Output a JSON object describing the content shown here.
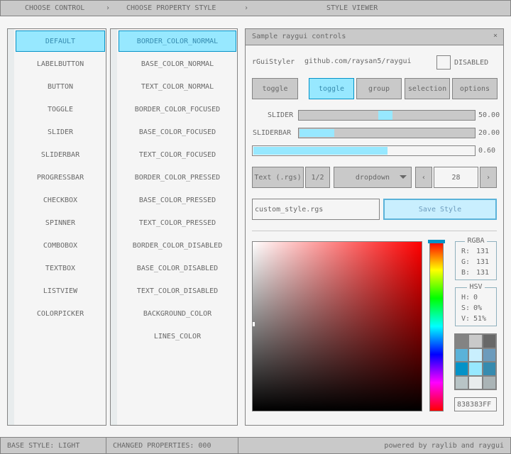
{
  "topbar": {
    "step1": "CHOOSE CONTROL",
    "sep": "›",
    "step2": "CHOOSE PROPERTY STYLE",
    "step3": "STYLE VIEWER"
  },
  "controls": [
    "DEFAULT",
    "LABELBUTTON",
    "BUTTON",
    "TOGGLE",
    "SLIDER",
    "SLIDERBAR",
    "PROGRESSBAR",
    "CHECKBOX",
    "SPINNER",
    "COMBOBOX",
    "TEXTBOX",
    "LISTVIEW",
    "COLORPICKER"
  ],
  "properties": [
    "BORDER_COLOR_NORMAL",
    "BASE_COLOR_NORMAL",
    "TEXT_COLOR_NORMAL",
    "BORDER_COLOR_FOCUSED",
    "BASE_COLOR_FOCUSED",
    "TEXT_COLOR_FOCUSED",
    "BORDER_COLOR_PRESSED",
    "BASE_COLOR_PRESSED",
    "TEXT_COLOR_PRESSED",
    "BORDER_COLOR_DISABLED",
    "BASE_COLOR_DISABLED",
    "TEXT_COLOR_DISABLED",
    "BACKGROUND_COLOR",
    "LINES_COLOR"
  ],
  "window": {
    "title": "Sample raygui controls",
    "close": "×",
    "label": "rGuiStyler",
    "link": "github.com/raysan5/raygui",
    "disabled_label": "DISABLED",
    "disabled_checked": false,
    "toggle": "toggle",
    "group": [
      "toggle",
      "group",
      "selection",
      "options"
    ],
    "slider": {
      "label": "SLIDER",
      "value": "50.00",
      "fraction": 0.5
    },
    "sliderbar": {
      "label": "SLIDERBAR",
      "value": "20.00",
      "fraction": 0.2
    },
    "progress": {
      "value": "0.60",
      "fraction": 0.6
    },
    "text_button": "Text (.rgs)",
    "pager": "1/2",
    "dropdown": "dropdown",
    "spinner": {
      "left": "‹",
      "value": "28",
      "right": "›"
    },
    "filename": "custom_style.rgs",
    "save": "Save Style",
    "rgba": {
      "title": "RGBA",
      "r_label": "R:",
      "r": "131",
      "g_label": "G:",
      "g": "131",
      "b_label": "B:",
      "b": "131"
    },
    "hsv": {
      "title": "HSV",
      "h_label": "H:",
      "h": "0",
      "s_label": "S:",
      "s": "0%",
      "v_label": "V:",
      "v": "51%"
    },
    "palette": [
      "#838383",
      "#c9c9c9",
      "#686868",
      "#5bb2d9",
      "#c9effe",
      "#6c9bbc",
      "#0492c7",
      "#97e8ff",
      "#368baf",
      "#b8c4c6",
      "#e8eced",
      "#aab4b6"
    ],
    "hex": "838383FF"
  },
  "status": {
    "base": "BASE STYLE: LIGHT",
    "changed": "CHANGED PROPERTIES: 000",
    "powered": "powered by raylib and raygui"
  }
}
